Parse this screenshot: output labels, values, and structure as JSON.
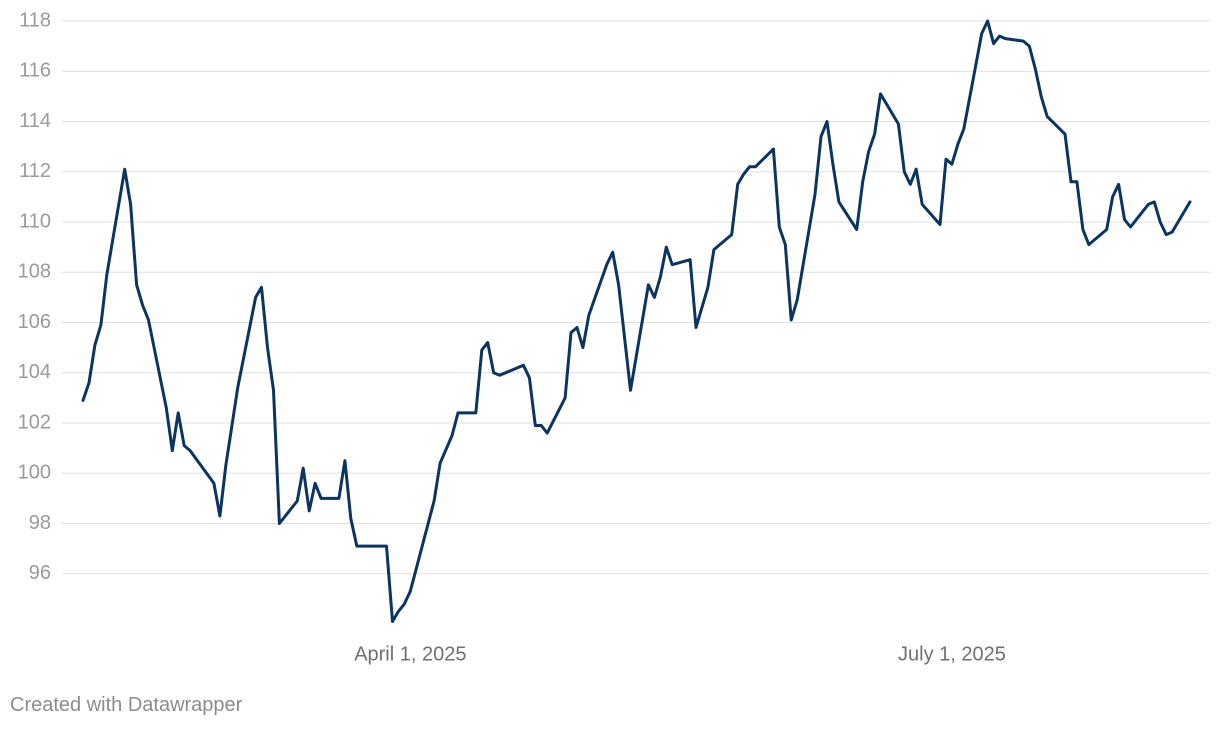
{
  "chart_data": {
    "type": "line",
    "title": "",
    "xlabel": "",
    "ylabel": "",
    "ylim": [
      94,
      118
    ],
    "y_ticks": [
      96,
      98,
      100,
      102,
      104,
      106,
      108,
      110,
      112,
      114,
      116,
      118
    ],
    "x_ticks": [
      {
        "date": "2025-04-01",
        "label": "April 1, 2025"
      },
      {
        "date": "2025-07-01",
        "label": "July 1, 2025"
      }
    ],
    "grid": true,
    "legend": "none",
    "line_color": "#0b3460",
    "series": [
      {
        "points": [
          [
            "2025-02-05",
            102.9
          ],
          [
            "2025-02-06",
            103.6
          ],
          [
            "2025-02-07",
            105.1
          ],
          [
            "2025-02-08",
            105.9
          ],
          [
            "2025-02-09",
            107.9
          ],
          [
            "2025-02-12",
            112.1
          ],
          [
            "2025-02-13",
            110.7
          ],
          [
            "2025-02-14",
            107.5
          ],
          [
            "2025-02-15",
            106.7
          ],
          [
            "2025-02-16",
            106.1
          ],
          [
            "2025-02-19",
            102.6
          ],
          [
            "2025-02-20",
            100.9
          ],
          [
            "2025-02-21",
            102.4
          ],
          [
            "2025-02-22",
            101.1
          ],
          [
            "2025-02-23",
            100.9
          ],
          [
            "2025-02-27",
            99.6
          ],
          [
            "2025-02-28",
            98.3
          ],
          [
            "2025-03-01",
            100.3
          ],
          [
            "2025-03-03",
            103.4
          ],
          [
            "2025-03-06",
            107.0
          ],
          [
            "2025-03-07",
            107.4
          ],
          [
            "2025-03-08",
            105.0
          ],
          [
            "2025-03-09",
            103.3
          ],
          [
            "2025-03-10",
            98.0
          ],
          [
            "2025-03-13",
            98.9
          ],
          [
            "2025-03-14",
            100.2
          ],
          [
            "2025-03-15",
            98.5
          ],
          [
            "2025-03-16",
            99.6
          ],
          [
            "2025-03-17",
            99.0
          ],
          [
            "2025-03-20",
            99.0
          ],
          [
            "2025-03-21",
            100.5
          ],
          [
            "2025-03-22",
            98.2
          ],
          [
            "2025-03-23",
            97.1
          ],
          [
            "2025-03-28",
            97.1
          ],
          [
            "2025-03-29",
            94.1
          ],
          [
            "2025-03-30",
            94.5
          ],
          [
            "2025-03-31",
            94.8
          ],
          [
            "2025-04-01",
            95.3
          ],
          [
            "2025-04-03",
            97.1
          ],
          [
            "2025-04-05",
            98.9
          ],
          [
            "2025-04-06",
            100.4
          ],
          [
            "2025-04-08",
            101.5
          ],
          [
            "2025-04-09",
            102.4
          ],
          [
            "2025-04-12",
            102.4
          ],
          [
            "2025-04-13",
            104.9
          ],
          [
            "2025-04-14",
            105.2
          ],
          [
            "2025-04-15",
            104.0
          ],
          [
            "2025-04-16",
            103.9
          ],
          [
            "2025-04-20",
            104.3
          ],
          [
            "2025-04-21",
            103.8
          ],
          [
            "2025-04-22",
            101.9
          ],
          [
            "2025-04-23",
            101.9
          ],
          [
            "2025-04-24",
            101.6
          ],
          [
            "2025-04-27",
            103.0
          ],
          [
            "2025-04-28",
            105.6
          ],
          [
            "2025-04-29",
            105.8
          ],
          [
            "2025-04-30",
            105.0
          ],
          [
            "2025-05-01",
            106.3
          ],
          [
            "2025-05-04",
            108.3
          ],
          [
            "2025-05-05",
            108.8
          ],
          [
            "2025-05-06",
            107.5
          ],
          [
            "2025-05-08",
            103.3
          ],
          [
            "2025-05-11",
            107.5
          ],
          [
            "2025-05-12",
            107.0
          ],
          [
            "2025-05-13",
            107.8
          ],
          [
            "2025-05-14",
            109.0
          ],
          [
            "2025-05-15",
            108.3
          ],
          [
            "2025-05-18",
            108.5
          ],
          [
            "2025-05-19",
            105.8
          ],
          [
            "2025-05-21",
            107.4
          ],
          [
            "2025-05-22",
            108.9
          ],
          [
            "2025-05-25",
            109.5
          ],
          [
            "2025-05-26",
            111.5
          ],
          [
            "2025-05-27",
            111.9
          ],
          [
            "2025-05-28",
            112.2
          ],
          [
            "2025-05-29",
            112.2
          ],
          [
            "2025-06-01",
            112.9
          ],
          [
            "2025-06-02",
            109.8
          ],
          [
            "2025-06-03",
            109.1
          ],
          [
            "2025-06-04",
            106.1
          ],
          [
            "2025-06-05",
            106.9
          ],
          [
            "2025-06-08",
            111.1
          ],
          [
            "2025-06-09",
            113.4
          ],
          [
            "2025-06-10",
            114.0
          ],
          [
            "2025-06-11",
            112.3
          ],
          [
            "2025-06-12",
            110.8
          ],
          [
            "2025-06-15",
            109.7
          ],
          [
            "2025-06-16",
            111.6
          ],
          [
            "2025-06-17",
            112.8
          ],
          [
            "2025-06-18",
            113.5
          ],
          [
            "2025-06-19",
            115.1
          ],
          [
            "2025-06-22",
            113.9
          ],
          [
            "2025-06-23",
            112.0
          ],
          [
            "2025-06-24",
            111.5
          ],
          [
            "2025-06-25",
            112.1
          ],
          [
            "2025-06-26",
            110.7
          ],
          [
            "2025-06-29",
            109.9
          ],
          [
            "2025-06-30",
            112.5
          ],
          [
            "2025-07-01",
            112.3
          ],
          [
            "2025-07-02",
            113.1
          ],
          [
            "2025-07-03",
            113.7
          ],
          [
            "2025-07-06",
            117.5
          ],
          [
            "2025-07-07",
            118.0
          ],
          [
            "2025-07-08",
            117.1
          ],
          [
            "2025-07-09",
            117.4
          ],
          [
            "2025-07-10",
            117.3
          ],
          [
            "2025-07-13",
            117.2
          ],
          [
            "2025-07-14",
            117.0
          ],
          [
            "2025-07-15",
            116.1
          ],
          [
            "2025-07-16",
            115.0
          ],
          [
            "2025-07-17",
            114.2
          ],
          [
            "2025-07-20",
            113.5
          ],
          [
            "2025-07-21",
            111.6
          ],
          [
            "2025-07-22",
            111.6
          ],
          [
            "2025-07-23",
            109.7
          ],
          [
            "2025-07-24",
            109.1
          ],
          [
            "2025-07-27",
            109.7
          ],
          [
            "2025-07-28",
            111.0
          ],
          [
            "2025-07-29",
            111.5
          ],
          [
            "2025-07-30",
            110.1
          ],
          [
            "2025-07-31",
            109.8
          ],
          [
            "2025-08-03",
            110.7
          ],
          [
            "2025-08-04",
            110.8
          ],
          [
            "2025-08-05",
            110.0
          ],
          [
            "2025-08-06",
            109.5
          ],
          [
            "2025-08-07",
            109.6
          ],
          [
            "2025-08-10",
            110.8
          ]
        ]
      }
    ]
  },
  "footer": {
    "credit": "Created with Datawrapper"
  }
}
